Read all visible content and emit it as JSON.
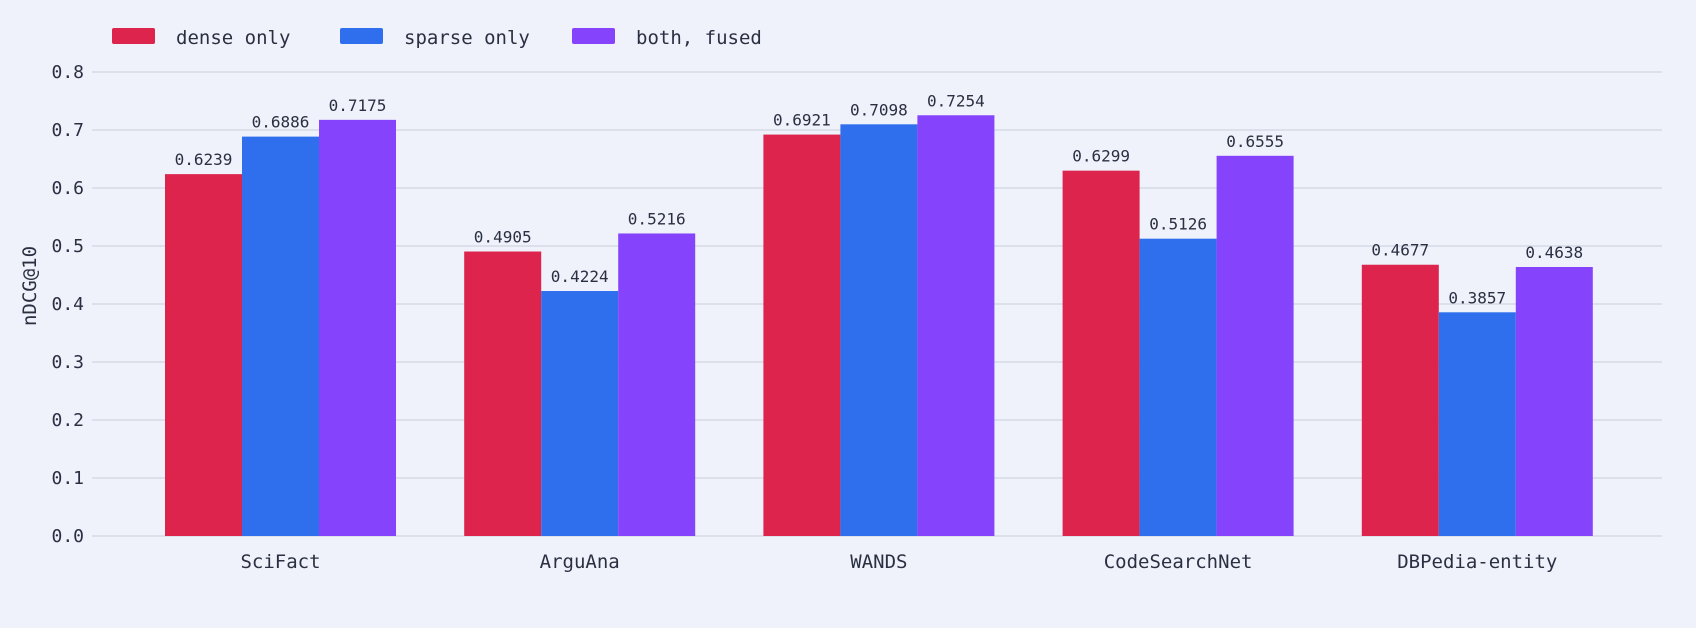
{
  "chart_data": {
    "type": "bar",
    "title": "",
    "xlabel": "",
    "ylabel": "nDCG@10",
    "ylim": [
      0,
      0.8
    ],
    "yticks": [
      "0.0",
      "0.1",
      "0.2",
      "0.3",
      "0.4",
      "0.5",
      "0.6",
      "0.7",
      "0.8"
    ],
    "grid": true,
    "legend_position": "top-left",
    "categories": [
      "SciFact",
      "ArguAna",
      "WANDS",
      "CodeSearchNet",
      "DBPedia-entity"
    ],
    "series": [
      {
        "name": "dense only",
        "color": "#dc244c",
        "values": [
          0.6239,
          0.4905,
          0.6921,
          0.6299,
          0.4677
        ],
        "labels": [
          "0.6239",
          "0.4905",
          "0.6921",
          "0.6299",
          "0.4677"
        ]
      },
      {
        "name": "sparse only",
        "color": "#2f6fee",
        "values": [
          0.6886,
          0.4224,
          0.7098,
          0.5126,
          0.3857
        ],
        "labels": [
          "0.6886",
          "0.4224",
          "0.7098",
          "0.5126",
          "0.3857"
        ]
      },
      {
        "name": "both, fused",
        "color": "#8543fb",
        "values": [
          0.7175,
          0.5216,
          0.7254,
          0.6555,
          0.4638
        ],
        "labels": [
          "0.7175",
          "0.5216",
          "0.7254",
          "0.6555",
          "0.4638"
        ]
      }
    ]
  },
  "colors": {
    "background": "#eff2fb",
    "gridline": "#d5d9e6",
    "text": "#2a3042"
  }
}
